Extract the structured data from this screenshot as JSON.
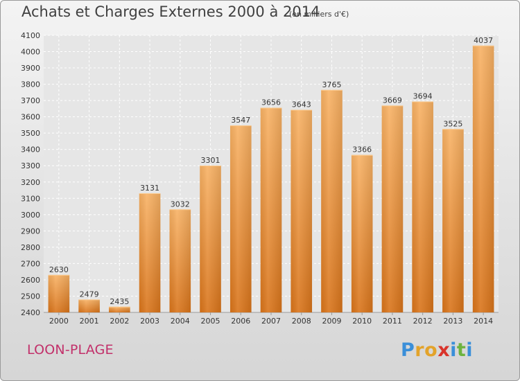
{
  "header": {
    "title": "Achats et Charges Externes 2000 à 2014",
    "subtitle": "(en milliers d'€)"
  },
  "footer": {
    "city": "LOON-PLAGE",
    "logo_letters": [
      "P",
      "r",
      "o",
      "x",
      "i",
      "t",
      "i"
    ],
    "logo_colors": [
      "#3a8fd9",
      "#e3a32a",
      "#e3a32a",
      "#d9342b",
      "#3a8fd9",
      "#6db33f",
      "#3a8fd9"
    ]
  },
  "chart_data": {
    "type": "bar",
    "categories": [
      "2000",
      "2001",
      "2002",
      "2003",
      "2004",
      "2005",
      "2006",
      "2007",
      "2008",
      "2009",
      "2010",
      "2011",
      "2012",
      "2013",
      "2014"
    ],
    "values": [
      2630,
      2479,
      2435,
      3131,
      3032,
      3301,
      3547,
      3656,
      3643,
      3765,
      3366,
      3669,
      3694,
      3525,
      4037
    ],
    "ylim": [
      2400,
      4100
    ],
    "yticks": [
      2400,
      2500,
      2600,
      2700,
      2800,
      2900,
      3000,
      3100,
      3200,
      3300,
      3400,
      3500,
      3600,
      3700,
      3800,
      3900,
      4000,
      4100
    ],
    "grid": true,
    "bar_color": "#f0922f",
    "bar_color_light": "#f8b265",
    "bar_color_dark": "#d9741a"
  }
}
